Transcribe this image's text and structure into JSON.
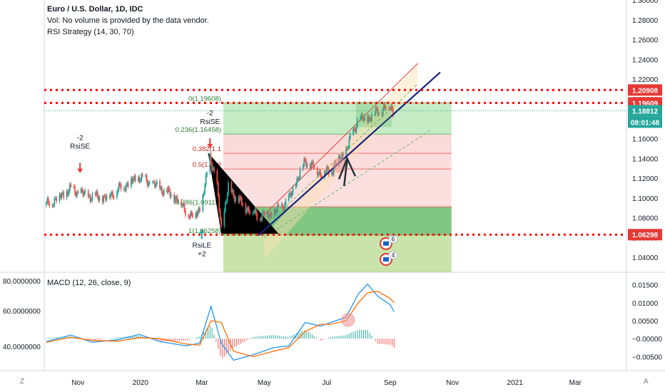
{
  "header": {
    "title": "Euro / U.S. Dollar, 1D, IDC",
    "volume_note": "Vol: No volume is provided by the data vendor.",
    "strategy": "RSI Strategy (14, 30, 70)"
  },
  "macd": {
    "label": "MACD (12, 26, close, 9)"
  },
  "price_axis": {
    "ticks": [
      "1.30000",
      "1.28000",
      "1.26000",
      "1.24000",
      "1.22000",
      "1.20000",
      "1.18000",
      "1.16000",
      "1.14000",
      "1.12000",
      "1.10000",
      "1.08000",
      "1.06000",
      "1.04000"
    ],
    "badges": [
      {
        "text": "1.20908",
        "color": "#e53935"
      },
      {
        "text": "1.19609",
        "color": "#e53935"
      },
      {
        "text": "1.18812",
        "color": "#26a69a"
      },
      {
        "text": "08:01:48",
        "color": "#26a69a"
      },
      {
        "text": "1.06298",
        "color": "#e53935"
      }
    ]
  },
  "macd_axis": {
    "right_ticks": [
      "0.01500",
      "0.01000",
      "0.00500",
      "−0.00000",
      "−0.00500"
    ],
    "left_ticks": [
      "80.0000000",
      "60.0000000",
      "40.0000000"
    ]
  },
  "time_axis": {
    "ticks": [
      "Nov",
      "2020",
      "Mar",
      "May",
      "Jul",
      "Sep",
      "Nov",
      "2021",
      "Mar"
    ]
  },
  "fib_levels": [
    {
      "label": "0(1.19608)",
      "value": 1.19608
    },
    {
      "label": "0.236(1.16458)",
      "value": 1.16458
    },
    {
      "label": "0.382(1.1",
      "value": 1.1451
    },
    {
      "label": "0.5(1.129",
      "value": 1.1293
    },
    {
      "label": "0.786(1.09115)",
      "value": 1.09115
    },
    {
      "label": "1(1.06258)",
      "value": 1.06258
    }
  ],
  "signals": [
    {
      "lines": [
        "-2",
        "RsiSE"
      ],
      "type": "sell"
    },
    {
      "lines": [
        "-2",
        "RsiSE"
      ],
      "type": "sell"
    },
    {
      "lines": [
        "RsiLE",
        "+2"
      ],
      "type": "buy"
    }
  ],
  "event_badges": [
    {
      "count": "6"
    },
    {
      "count": "4"
    }
  ],
  "corner_labels": {
    "left": "Z",
    "right": "A"
  },
  "colors": {
    "up": "#26a69a",
    "down": "#ef5350",
    "macd_line": "#2196f3",
    "signal_line": "#ff6d00",
    "dotted": "#ff0000",
    "trend": "#1a237e",
    "fib_green": "#b2e5b2",
    "fib_red": "#f9c6c6"
  },
  "chart_data": [
    {
      "type": "candlestick",
      "title": "Euro / U.S. Dollar, 1D, IDC",
      "x_range": [
        "2019-09-29",
        "2021-04-20"
      ],
      "ylim": [
        1.025,
        1.3
      ],
      "horizontal_levels": [
        1.20908,
        1.19609,
        1.06298
      ],
      "last_price": 1.18812,
      "close_path": [
        [
          "2019-10-01",
          1.093
        ],
        [
          "2019-10-15",
          1.102
        ],
        [
          "2019-10-25",
          1.109
        ],
        [
          "2019-11-10",
          1.102
        ],
        [
          "2019-11-28",
          1.1
        ],
        [
          "2019-12-15",
          1.112
        ],
        [
          "2019-12-31",
          1.121
        ],
        [
          "2020-01-20",
          1.11
        ],
        [
          "2020-02-05",
          1.1
        ],
        [
          "2020-02-20",
          1.08
        ],
        [
          "2020-03-01",
          1.093
        ],
        [
          "2020-03-09",
          1.143
        ],
        [
          "2020-03-16",
          1.11
        ],
        [
          "2020-03-20",
          1.07
        ],
        [
          "2020-03-27",
          1.11
        ],
        [
          "2020-04-10",
          1.093
        ],
        [
          "2020-04-25",
          1.082
        ],
        [
          "2020-05-10",
          1.084
        ],
        [
          "2020-05-25",
          1.098
        ],
        [
          "2020-06-10",
          1.138
        ],
        [
          "2020-06-25",
          1.125
        ],
        [
          "2020-07-05",
          1.127
        ],
        [
          "2020-07-20",
          1.148
        ],
        [
          "2020-07-31",
          1.178
        ],
        [
          "2020-08-10",
          1.18
        ],
        [
          "2020-08-20",
          1.188
        ],
        [
          "2020-09-01",
          1.193
        ],
        [
          "2020-09-05",
          1.188
        ]
      ]
    },
    {
      "type": "line",
      "title": "MACD (12, 26, close, 9)",
      "ylim": [
        -0.0085,
        0.0185
      ],
      "macd_path": [
        [
          "2019-10-01",
          -0.0008
        ],
        [
          "2019-10-25",
          0.001
        ],
        [
          "2019-11-15",
          -0.001
        ],
        [
          "2019-12-10",
          -0.0003
        ],
        [
          "2019-12-31",
          0.0012
        ],
        [
          "2020-01-20",
          -0.0008
        ],
        [
          "2020-02-15",
          -0.002
        ],
        [
          "2020-02-28",
          -0.0012
        ],
        [
          "2020-03-10",
          0.009
        ],
        [
          "2020-03-20",
          -0.0012
        ],
        [
          "2020-04-01",
          -0.006
        ],
        [
          "2020-04-20",
          -0.0045
        ],
        [
          "2020-05-10",
          -0.0025
        ],
        [
          "2020-05-25",
          -0.002
        ],
        [
          "2020-06-10",
          0.0045
        ],
        [
          "2020-06-25",
          0.0035
        ],
        [
          "2020-07-05",
          0.0045
        ],
        [
          "2020-07-20",
          0.006
        ],
        [
          "2020-08-01",
          0.0125
        ],
        [
          "2020-08-10",
          0.0152
        ],
        [
          "2020-08-20",
          0.0118
        ],
        [
          "2020-09-01",
          0.0095
        ],
        [
          "2020-09-05",
          0.0075
        ]
      ],
      "signal_path": [
        [
          "2019-10-01",
          -0.001
        ],
        [
          "2019-10-25",
          0.0004
        ],
        [
          "2019-11-15",
          -0.0005
        ],
        [
          "2019-12-10",
          -0.0007
        ],
        [
          "2019-12-31",
          0.0003
        ],
        [
          "2020-01-20",
          0.0
        ],
        [
          "2020-02-15",
          -0.0015
        ],
        [
          "2020-02-28",
          -0.0018
        ],
        [
          "2020-03-10",
          0.005
        ],
        [
          "2020-03-20",
          0.0045
        ],
        [
          "2020-04-01",
          -0.0035
        ],
        [
          "2020-04-20",
          -0.005
        ],
        [
          "2020-05-10",
          -0.0035
        ],
        [
          "2020-05-25",
          -0.0025
        ],
        [
          "2020-06-10",
          0.002
        ],
        [
          "2020-06-25",
          0.004
        ],
        [
          "2020-07-05",
          0.004
        ],
        [
          "2020-07-20",
          0.005
        ],
        [
          "2020-08-01",
          0.01
        ],
        [
          "2020-08-10",
          0.0128
        ],
        [
          "2020-08-20",
          0.0132
        ],
        [
          "2020-09-01",
          0.0112
        ],
        [
          "2020-09-05",
          0.01
        ]
      ]
    }
  ]
}
